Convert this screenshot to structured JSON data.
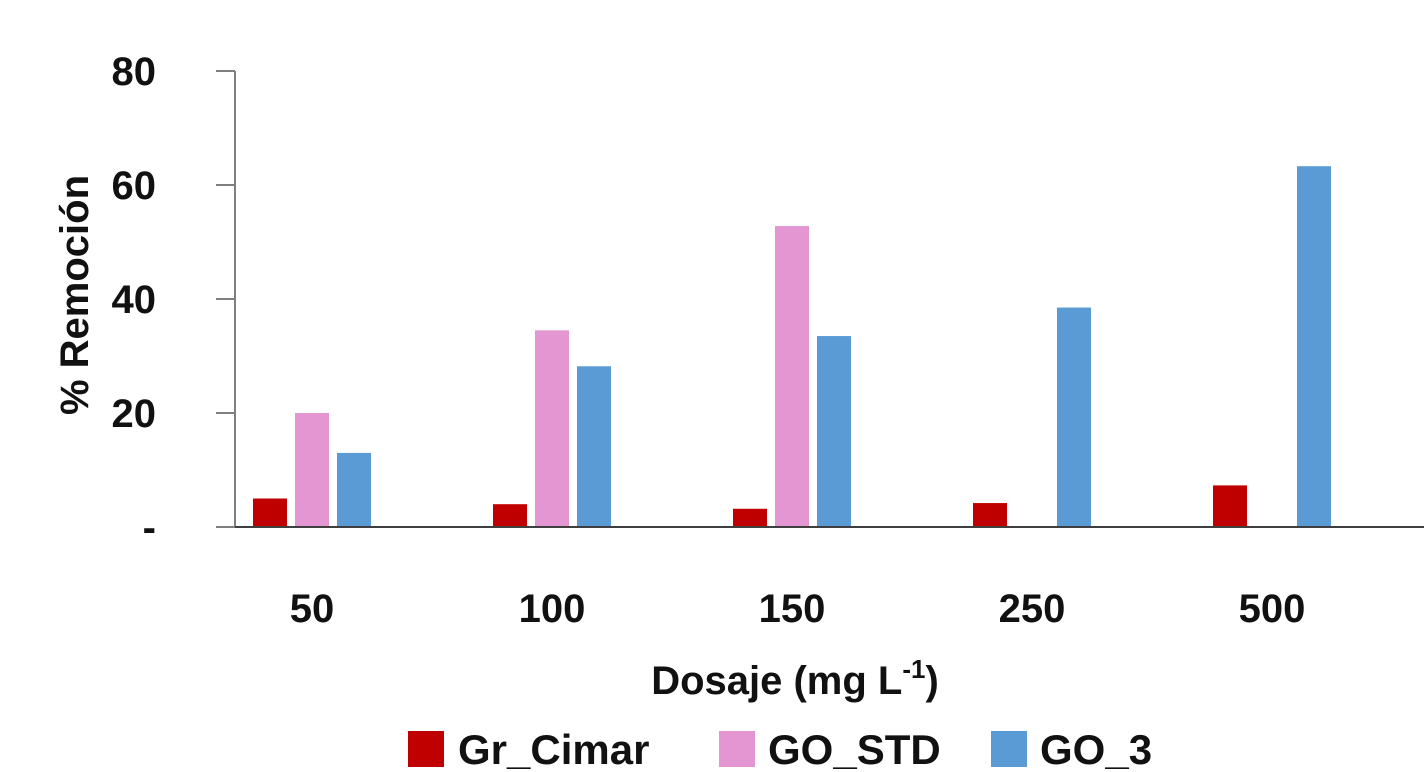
{
  "chart_data": {
    "type": "bar",
    "title": "",
    "xlabel": "Dosaje (mg L",
    "xlabel_superscript": "-1",
    "xlabel_suffix": ")",
    "ylabel": "% Remoción",
    "ylim": [
      0,
      80
    ],
    "yticks": [
      0,
      20,
      40,
      60,
      80
    ],
    "ytick_labels": [
      "-",
      "20",
      "40",
      "60",
      "80"
    ],
    "grid": false,
    "legend_position": "bottom",
    "categories": [
      "50",
      "100",
      "150",
      "250",
      "500"
    ],
    "series": [
      {
        "name": "Gr_Cimar",
        "color": "#c00000",
        "values": [
          5,
          4,
          3.2,
          4.2,
          7.3
        ]
      },
      {
        "name": "GO_STD",
        "color": "#e396d1",
        "values": [
          20,
          34.5,
          52.8,
          null,
          null
        ]
      },
      {
        "name": "GO_3",
        "color": "#5b9bd5",
        "values": [
          13,
          28.2,
          33.5,
          38.5,
          63.3
        ]
      }
    ]
  }
}
